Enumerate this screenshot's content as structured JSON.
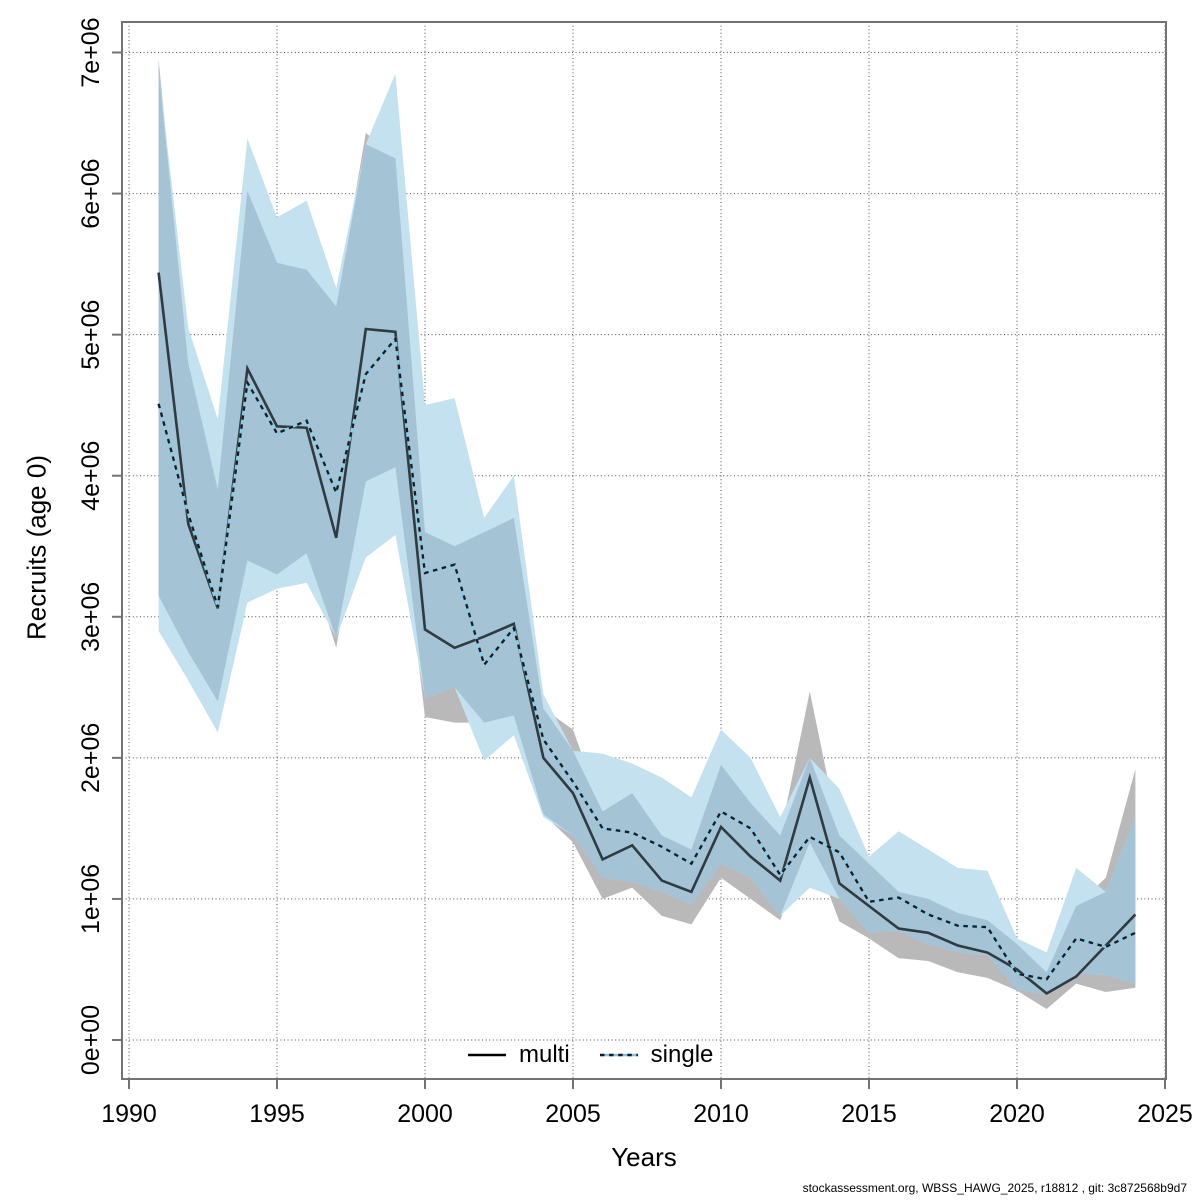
{
  "figure": {
    "footer": "stockassessment.org, WBSS_HAWG_2025, r18812 , git: 3c872568b9d7"
  },
  "chart_data": {
    "type": "line",
    "title": "",
    "xlabel": "Years",
    "ylabel": "Recruits (age 0)",
    "grid": true,
    "legend_position": "bottom-center-inside",
    "x_tick_values": [
      1990,
      1995,
      2000,
      2005,
      2010,
      2015,
      2020,
      2025
    ],
    "x_tick_labels": [
      "1990",
      "1995",
      "2000",
      "2005",
      "2010",
      "2015",
      "2020",
      "2025"
    ],
    "y_tick_values_millions": [
      0,
      1,
      2,
      3,
      4,
      5,
      6,
      7
    ],
    "y_tick_labels": [
      "0e+00",
      "1e+06",
      "2e+06",
      "3e+06",
      "4e+06",
      "5e+06",
      "6e+06",
      "7e+06"
    ],
    "xlim": [
      1989.8,
      2025.2
    ],
    "ylim_millions": [
      -0.28,
      7.21
    ],
    "years": [
      1991,
      1992,
      1993,
      1994,
      1995,
      1996,
      1997,
      1998,
      1999,
      2000,
      2001,
      2002,
      2003,
      2004,
      2005,
      2006,
      2007,
      2008,
      2009,
      2010,
      2011,
      2012,
      2013,
      2014,
      2015,
      2016,
      2017,
      2018,
      2019,
      2020,
      2021,
      2022,
      2023,
      2024
    ],
    "series": [
      {
        "name": "multi",
        "line_style": "solid",
        "legend_color": "#000000",
        "plot_line_color": "#2e3b42",
        "band_solo_color": "#b9b9b9",
        "values_millions": [
          5.44,
          3.66,
          3.06,
          4.76,
          4.35,
          4.34,
          3.56,
          5.04,
          5.02,
          2.91,
          2.78,
          2.86,
          2.95,
          2.0,
          1.75,
          1.28,
          1.38,
          1.13,
          1.05,
          1.51,
          1.3,
          1.13,
          1.86,
          1.11,
          0.95,
          0.79,
          0.76,
          0.67,
          0.62,
          0.5,
          0.33,
          0.45,
          0.67,
          0.89
        ],
        "band_lo_millions": [
          3.15,
          2.75,
          2.4,
          3.4,
          3.3,
          3.45,
          2.78,
          3.96,
          4.06,
          2.29,
          2.25,
          2.25,
          2.3,
          1.6,
          1.4,
          1.0,
          1.08,
          0.88,
          0.82,
          1.15,
          1.0,
          0.85,
          1.4,
          0.84,
          0.72,
          0.58,
          0.56,
          0.48,
          0.44,
          0.35,
          0.22,
          0.4,
          0.34,
          0.37
        ],
        "band_hi_millions": [
          6.95,
          4.8,
          3.9,
          6.02,
          5.51,
          5.46,
          5.2,
          6.43,
          6.25,
          3.6,
          3.5,
          3.6,
          3.7,
          2.35,
          2.2,
          1.62,
          1.75,
          1.45,
          1.35,
          1.95,
          1.68,
          1.45,
          2.47,
          1.45,
          1.25,
          1.05,
          1.0,
          0.9,
          0.85,
          0.68,
          0.48,
          0.95,
          1.15,
          1.92
        ]
      },
      {
        "name": "single",
        "line_style": "dashed",
        "legend_color": "#7fc4e8",
        "plot_line_color": "#1b1b1b",
        "plot_line_undercolor": "#8ccbe8",
        "band_solo_color": "#c3e1ef",
        "values_millions": [
          4.51,
          3.73,
          3.07,
          4.66,
          4.3,
          4.39,
          3.88,
          4.72,
          4.97,
          3.31,
          3.37,
          2.66,
          2.92,
          2.13,
          1.83,
          1.5,
          1.47,
          1.37,
          1.25,
          1.62,
          1.5,
          1.17,
          1.44,
          1.33,
          0.98,
          1.01,
          0.89,
          0.81,
          0.8,
          0.47,
          0.43,
          0.72,
          0.66,
          0.76
        ],
        "band_lo_millions": [
          2.9,
          2.55,
          2.18,
          3.1,
          3.2,
          3.24,
          2.85,
          3.42,
          3.58,
          2.42,
          2.5,
          1.98,
          2.16,
          1.58,
          1.45,
          1.15,
          1.12,
          1.05,
          0.96,
          1.25,
          1.15,
          0.88,
          1.08,
          1.0,
          0.76,
          0.77,
          0.68,
          0.62,
          0.6,
          0.36,
          0.32,
          0.47,
          0.46,
          0.4
        ],
        "band_hi_millions": [
          6.88,
          5.05,
          4.4,
          6.39,
          5.83,
          5.95,
          5.33,
          6.35,
          6.85,
          4.5,
          4.55,
          3.7,
          4.0,
          2.45,
          2.05,
          2.03,
          1.96,
          1.86,
          1.72,
          2.2,
          2.0,
          1.58,
          2.0,
          1.78,
          1.3,
          1.48,
          1.35,
          1.22,
          1.2,
          0.72,
          0.62,
          1.22,
          1.05,
          1.58
        ]
      }
    ],
    "band_overlap_color": "#a4c3d4",
    "legend": [
      {
        "label": "multi"
      },
      {
        "label": "single"
      }
    ]
  }
}
